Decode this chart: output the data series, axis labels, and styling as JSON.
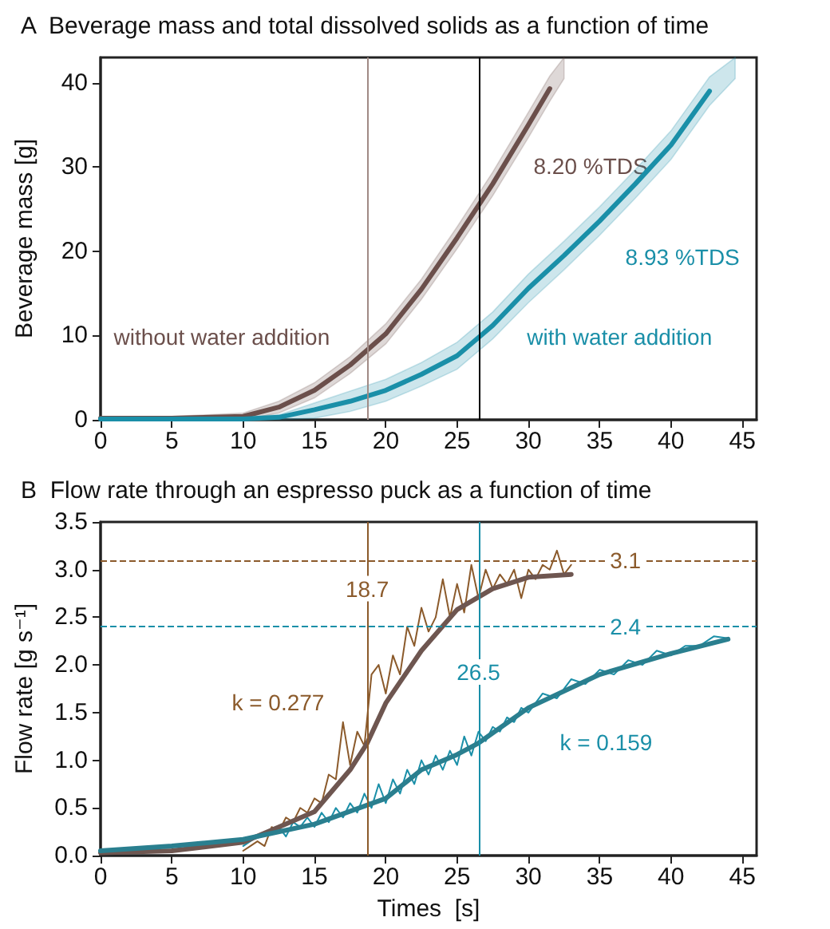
{
  "chart_data": [
    {
      "type": "line",
      "title": "A  Beverage mass and total dissolved solids as a function of time",
      "ylabel": "Beverage mass [g]",
      "xlim": [
        0,
        46
      ],
      "xticks": [
        0,
        5,
        10,
        15,
        20,
        25,
        30,
        35,
        40,
        45
      ],
      "ylim": [
        0,
        43
      ],
      "yticks": [
        0,
        10,
        20,
        30,
        40
      ],
      "grid": false,
      "marker": "none",
      "series": [
        {
          "color": "#6b4f4b",
          "x": [
            0,
            5,
            10,
            12.5,
            15,
            17.5,
            20,
            22.5,
            25,
            27.5,
            30,
            31.5,
            32.5
          ],
          "values": [
            0.2,
            0.2,
            0.4,
            1.5,
            3.5,
            6.5,
            10.2,
            15.5,
            21.6,
            28,
            35,
            39.3,
            null
          ],
          "lower": [
            0,
            0,
            0,
            0.8,
            2.6,
            5.5,
            9,
            14.3,
            20.3,
            26.6,
            33.5,
            37.8,
            40.5
          ],
          "upper": [
            0.4,
            0.4,
            0.8,
            2.2,
            4.4,
            7.5,
            11.4,
            16.7,
            22.9,
            29.4,
            36.5,
            40.8,
            43
          ]
        },
        {
          "color": "#1a8fa8",
          "x": [
            0,
            5,
            10,
            12.5,
            15,
            17.5,
            20,
            22.5,
            25,
            27.5,
            30,
            32.5,
            35,
            37.5,
            40,
            42.7,
            44.5
          ],
          "values": [
            0.1,
            0.1,
            0.1,
            0.3,
            1.2,
            2.2,
            3.5,
            5.4,
            7.6,
            11.2,
            15.6,
            19.5,
            23.6,
            28,
            32.6,
            39,
            null
          ],
          "lower": [
            0,
            0,
            0,
            0,
            0.2,
            1,
            2.2,
            4,
            6,
            9.6,
            13.9,
            17.8,
            21.9,
            26.3,
            30.9,
            37.3,
            40.5
          ],
          "upper": [
            0.3,
            0.3,
            0.3,
            0.6,
            2,
            3.4,
            4.8,
            6.8,
            9.2,
            12.8,
            17.3,
            21.2,
            25.3,
            29.7,
            34.3,
            40.7,
            43
          ]
        }
      ],
      "ref_lines": [
        {
          "axis": "x",
          "value": 18.7,
          "label": null,
          "color": "#a08a85"
        },
        {
          "axis": "x",
          "value": 26.5,
          "label": null,
          "color": "#000000"
        }
      ],
      "annotations": [
        "8.20 %TDS",
        "8.93 %TDS",
        "without water addition",
        "with water addition"
      ]
    },
    {
      "type": "line",
      "title": "B  Flow rate through an espresso puck as a function of time",
      "xlabel": "Times  [s]",
      "ylabel": "Flow rate [g s⁻¹]",
      "xlim": [
        0,
        46
      ],
      "xticks": [
        0,
        5,
        10,
        15,
        20,
        25,
        30,
        35,
        40,
        45
      ],
      "ylim": [
        0,
        3.5
      ],
      "yticks": [
        {
          "value": 0,
          "label": "0.0"
        },
        {
          "value": 0.5,
          "label": "0.5"
        },
        {
          "value": 1,
          "label": "1.0"
        },
        {
          "value": 1.5,
          "label": "1.5"
        },
        {
          "value": 2,
          "label": "2.0"
        },
        {
          "value": 2.5,
          "label": "2.5"
        },
        {
          "value": 3,
          "label": "3.0"
        },
        {
          "value": 3.5,
          "label": "3.5"
        }
      ],
      "grid": false,
      "marker": "none",
      "series": [
        {
          "color": "#8b5a2b",
          "x": [
            10,
            10.5,
            11,
            11.5,
            12,
            12.5,
            13,
            13.5,
            14,
            14.5,
            15,
            15.5,
            16,
            16.5,
            17,
            17.5,
            18,
            18.5,
            19,
            19.5,
            20,
            20.5,
            21,
            21.5,
            22,
            22.5,
            23,
            23.5,
            24,
            24.5,
            25,
            25.5,
            26,
            26.5,
            27,
            27.5,
            28,
            28.5,
            29,
            29.5,
            30,
            30.5,
            31,
            31.5,
            32,
            32.5,
            33
          ],
          "values": [
            0.05,
            0.1,
            0.15,
            0.1,
            0.3,
            0.25,
            0.4,
            0.35,
            0.5,
            0.45,
            0.6,
            0.55,
            0.85,
            0.8,
            1.4,
            0.95,
            1.3,
            1.15,
            1.9,
            2,
            1.7,
            2.1,
            1.9,
            2.4,
            2.2,
            2.6,
            2.35,
            2.5,
            2.9,
            2.5,
            2.85,
            2.55,
            3.05,
            2.7,
            3,
            2.8,
            2.95,
            2.85,
            3,
            2.7,
            3,
            2.9,
            3.05,
            3,
            3.2,
            2.95,
            3.05
          ]
        },
        {
          "color": "#1a8fa8",
          "x": [
            10,
            11,
            12,
            12.5,
            13,
            13.5,
            14,
            14.5,
            15,
            15.5,
            16,
            16.5,
            17,
            17.5,
            18,
            18.5,
            19,
            19.5,
            20,
            20.5,
            21,
            21.5,
            22,
            22.5,
            23,
            23.5,
            24,
            24.5,
            25,
            25.5,
            26,
            26.5,
            27,
            27.5,
            28,
            28.5,
            29,
            29.5,
            30,
            31,
            32,
            33,
            34,
            35,
            36,
            37,
            38,
            39,
            40,
            41,
            42,
            43,
            44
          ],
          "values": [
            0.1,
            0.2,
            0.25,
            0.3,
            0.2,
            0.35,
            0.3,
            0.4,
            0.3,
            0.45,
            0.35,
            0.5,
            0.4,
            0.55,
            0.45,
            0.65,
            0.5,
            0.75,
            0.55,
            0.8,
            0.65,
            0.9,
            0.75,
            1,
            0.85,
            1.05,
            0.9,
            1.1,
            0.95,
            1.25,
            1.05,
            1.3,
            1.2,
            1.35,
            1.3,
            1.45,
            1.4,
            1.55,
            1.5,
            1.7,
            1.65,
            1.85,
            1.8,
            1.95,
            1.9,
            2.05,
            2,
            2.15,
            2.1,
            2.2,
            2.2,
            2.3,
            2.28
          ]
        },
        {
          "color": "#6e5650",
          "x": [
            0,
            5,
            10,
            12.5,
            15,
            17.5,
            18.7,
            20,
            22.5,
            25,
            27.5,
            30,
            33
          ],
          "values": [
            0.03,
            0.05,
            0.14,
            0.3,
            0.46,
            0.9,
            1.18,
            1.6,
            2.15,
            2.58,
            2.8,
            2.92,
            2.95
          ]
        },
        {
          "color": "#2a7f8f",
          "x": [
            0,
            5,
            10,
            15,
            20,
            22.5,
            25,
            26.5,
            30,
            35,
            40,
            44
          ],
          "values": [
            0.05,
            0.1,
            0.17,
            0.33,
            0.6,
            0.9,
            1.06,
            1.18,
            1.55,
            1.9,
            2.12,
            2.27
          ]
        }
      ],
      "ref_lines": [
        {
          "axis": "y",
          "value": 3.1,
          "label": "3.1",
          "color": "#8b5a2b",
          "line_style": "dashed"
        },
        {
          "axis": "y",
          "value": 2.4,
          "label": "2.4",
          "color": "#1a8fa8",
          "line_style": "dashed"
        },
        {
          "axis": "x",
          "value": 18.7,
          "label": "18.7",
          "color": "#8b5a2b"
        },
        {
          "axis": "x",
          "value": 26.5,
          "label": "26.5",
          "color": "#1a8fa8"
        }
      ],
      "annotations": [
        "k = 0.277",
        "k = 0.159"
      ]
    }
  ]
}
